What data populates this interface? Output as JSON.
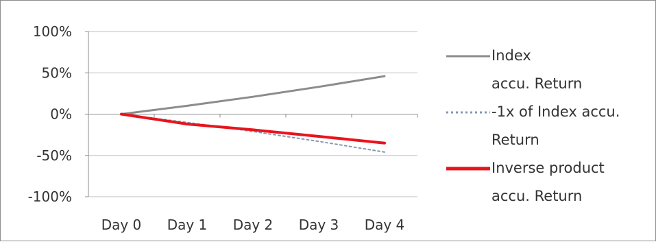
{
  "chart_data": {
    "type": "line",
    "title": "",
    "xlabel": "",
    "ylabel": "",
    "categories": [
      "Day 0",
      "Day 1",
      "Day 2",
      "Day 3",
      "Day 4"
    ],
    "ylim": [
      -100,
      100
    ],
    "y_ticks": [
      100,
      50,
      0,
      -50,
      -100
    ],
    "y_tick_labels": [
      "100%",
      "50%",
      "0%",
      "-50%",
      "-100%"
    ],
    "grid": true,
    "legend_position": "right",
    "series": [
      {
        "name": "Index accu. Return",
        "values": [
          0,
          10,
          21,
          33,
          46
        ],
        "color": "#8c8c8c",
        "style": "solid"
      },
      {
        "name": "-1x of Index accu. Return",
        "values": [
          0,
          -10,
          -21,
          -33,
          -46
        ],
        "color": "#8497b0",
        "style": "dotted"
      },
      {
        "name": "Inverse product accu. Return",
        "values": [
          0,
          -12,
          -19,
          -27,
          -35
        ],
        "color": "#e8141c",
        "style": "solid"
      }
    ]
  },
  "legend": {
    "items": [
      {
        "label": "Index\naccu. Return"
      },
      {
        "label": "-1x of Index accu.\nReturn"
      },
      {
        "label": "Inverse product\naccu. Return"
      }
    ]
  }
}
